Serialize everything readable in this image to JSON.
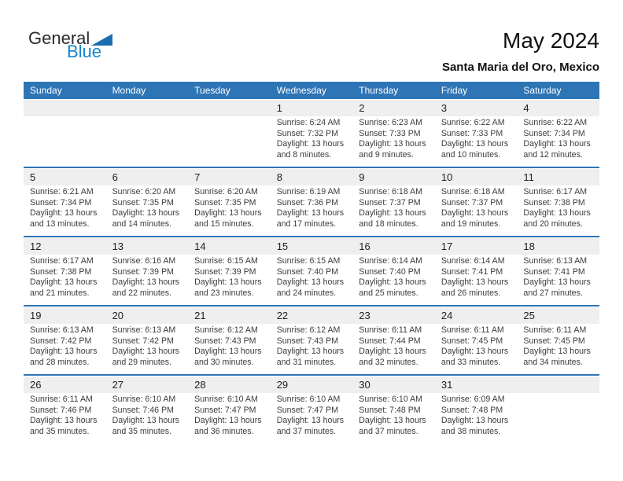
{
  "logo": {
    "part1": "General",
    "part2": "Blue",
    "triangle_color": "#1b6db0",
    "blue_color": "#1287cf"
  },
  "header": {
    "title": "May 2024",
    "subtitle": "Santa Maria del Oro, Mexico"
  },
  "colors": {
    "weekday_header_bg": "#2E75B6",
    "date_band_bg": "#EFEFEF",
    "separator": "#2E75B6"
  },
  "weekdays": [
    "Sunday",
    "Monday",
    "Tuesday",
    "Wednesday",
    "Thursday",
    "Friday",
    "Saturday"
  ],
  "weeks": [
    {
      "cells": [
        {
          "day": ""
        },
        {
          "day": ""
        },
        {
          "day": ""
        },
        {
          "day": "1",
          "sunrise": "Sunrise: 6:24 AM",
          "sunset": "Sunset: 7:32 PM",
          "daylight1": "Daylight: 13 hours",
          "daylight2": "and 8 minutes."
        },
        {
          "day": "2",
          "sunrise": "Sunrise: 6:23 AM",
          "sunset": "Sunset: 7:33 PM",
          "daylight1": "Daylight: 13 hours",
          "daylight2": "and 9 minutes."
        },
        {
          "day": "3",
          "sunrise": "Sunrise: 6:22 AM",
          "sunset": "Sunset: 7:33 PM",
          "daylight1": "Daylight: 13 hours",
          "daylight2": "and 10 minutes."
        },
        {
          "day": "4",
          "sunrise": "Sunrise: 6:22 AM",
          "sunset": "Sunset: 7:34 PM",
          "daylight1": "Daylight: 13 hours",
          "daylight2": "and 12 minutes."
        }
      ]
    },
    {
      "cells": [
        {
          "day": "5",
          "sunrise": "Sunrise: 6:21 AM",
          "sunset": "Sunset: 7:34 PM",
          "daylight1": "Daylight: 13 hours",
          "daylight2": "and 13 minutes."
        },
        {
          "day": "6",
          "sunrise": "Sunrise: 6:20 AM",
          "sunset": "Sunset: 7:35 PM",
          "daylight1": "Daylight: 13 hours",
          "daylight2": "and 14 minutes."
        },
        {
          "day": "7",
          "sunrise": "Sunrise: 6:20 AM",
          "sunset": "Sunset: 7:35 PM",
          "daylight1": "Daylight: 13 hours",
          "daylight2": "and 15 minutes."
        },
        {
          "day": "8",
          "sunrise": "Sunrise: 6:19 AM",
          "sunset": "Sunset: 7:36 PM",
          "daylight1": "Daylight: 13 hours",
          "daylight2": "and 17 minutes."
        },
        {
          "day": "9",
          "sunrise": "Sunrise: 6:18 AM",
          "sunset": "Sunset: 7:37 PM",
          "daylight1": "Daylight: 13 hours",
          "daylight2": "and 18 minutes."
        },
        {
          "day": "10",
          "sunrise": "Sunrise: 6:18 AM",
          "sunset": "Sunset: 7:37 PM",
          "daylight1": "Daylight: 13 hours",
          "daylight2": "and 19 minutes."
        },
        {
          "day": "11",
          "sunrise": "Sunrise: 6:17 AM",
          "sunset": "Sunset: 7:38 PM",
          "daylight1": "Daylight: 13 hours",
          "daylight2": "and 20 minutes."
        }
      ]
    },
    {
      "cells": [
        {
          "day": "12",
          "sunrise": "Sunrise: 6:17 AM",
          "sunset": "Sunset: 7:38 PM",
          "daylight1": "Daylight: 13 hours",
          "daylight2": "and 21 minutes."
        },
        {
          "day": "13",
          "sunrise": "Sunrise: 6:16 AM",
          "sunset": "Sunset: 7:39 PM",
          "daylight1": "Daylight: 13 hours",
          "daylight2": "and 22 minutes."
        },
        {
          "day": "14",
          "sunrise": "Sunrise: 6:15 AM",
          "sunset": "Sunset: 7:39 PM",
          "daylight1": "Daylight: 13 hours",
          "daylight2": "and 23 minutes."
        },
        {
          "day": "15",
          "sunrise": "Sunrise: 6:15 AM",
          "sunset": "Sunset: 7:40 PM",
          "daylight1": "Daylight: 13 hours",
          "daylight2": "and 24 minutes."
        },
        {
          "day": "16",
          "sunrise": "Sunrise: 6:14 AM",
          "sunset": "Sunset: 7:40 PM",
          "daylight1": "Daylight: 13 hours",
          "daylight2": "and 25 minutes."
        },
        {
          "day": "17",
          "sunrise": "Sunrise: 6:14 AM",
          "sunset": "Sunset: 7:41 PM",
          "daylight1": "Daylight: 13 hours",
          "daylight2": "and 26 minutes."
        },
        {
          "day": "18",
          "sunrise": "Sunrise: 6:13 AM",
          "sunset": "Sunset: 7:41 PM",
          "daylight1": "Daylight: 13 hours",
          "daylight2": "and 27 minutes."
        }
      ]
    },
    {
      "cells": [
        {
          "day": "19",
          "sunrise": "Sunrise: 6:13 AM",
          "sunset": "Sunset: 7:42 PM",
          "daylight1": "Daylight: 13 hours",
          "daylight2": "and 28 minutes."
        },
        {
          "day": "20",
          "sunrise": "Sunrise: 6:13 AM",
          "sunset": "Sunset: 7:42 PM",
          "daylight1": "Daylight: 13 hours",
          "daylight2": "and 29 minutes."
        },
        {
          "day": "21",
          "sunrise": "Sunrise: 6:12 AM",
          "sunset": "Sunset: 7:43 PM",
          "daylight1": "Daylight: 13 hours",
          "daylight2": "and 30 minutes."
        },
        {
          "day": "22",
          "sunrise": "Sunrise: 6:12 AM",
          "sunset": "Sunset: 7:43 PM",
          "daylight1": "Daylight: 13 hours",
          "daylight2": "and 31 minutes."
        },
        {
          "day": "23",
          "sunrise": "Sunrise: 6:11 AM",
          "sunset": "Sunset: 7:44 PM",
          "daylight1": "Daylight: 13 hours",
          "daylight2": "and 32 minutes."
        },
        {
          "day": "24",
          "sunrise": "Sunrise: 6:11 AM",
          "sunset": "Sunset: 7:45 PM",
          "daylight1": "Daylight: 13 hours",
          "daylight2": "and 33 minutes."
        },
        {
          "day": "25",
          "sunrise": "Sunrise: 6:11 AM",
          "sunset": "Sunset: 7:45 PM",
          "daylight1": "Daylight: 13 hours",
          "daylight2": "and 34 minutes."
        }
      ]
    },
    {
      "cells": [
        {
          "day": "26",
          "sunrise": "Sunrise: 6:11 AM",
          "sunset": "Sunset: 7:46 PM",
          "daylight1": "Daylight: 13 hours",
          "daylight2": "and 35 minutes."
        },
        {
          "day": "27",
          "sunrise": "Sunrise: 6:10 AM",
          "sunset": "Sunset: 7:46 PM",
          "daylight1": "Daylight: 13 hours",
          "daylight2": "and 35 minutes."
        },
        {
          "day": "28",
          "sunrise": "Sunrise: 6:10 AM",
          "sunset": "Sunset: 7:47 PM",
          "daylight1": "Daylight: 13 hours",
          "daylight2": "and 36 minutes."
        },
        {
          "day": "29",
          "sunrise": "Sunrise: 6:10 AM",
          "sunset": "Sunset: 7:47 PM",
          "daylight1": "Daylight: 13 hours",
          "daylight2": "and 37 minutes."
        },
        {
          "day": "30",
          "sunrise": "Sunrise: 6:10 AM",
          "sunset": "Sunset: 7:48 PM",
          "daylight1": "Daylight: 13 hours",
          "daylight2": "and 37 minutes."
        },
        {
          "day": "31",
          "sunrise": "Sunrise: 6:09 AM",
          "sunset": "Sunset: 7:48 PM",
          "daylight1": "Daylight: 13 hours",
          "daylight2": "and 38 minutes."
        },
        {
          "day": ""
        }
      ]
    }
  ]
}
